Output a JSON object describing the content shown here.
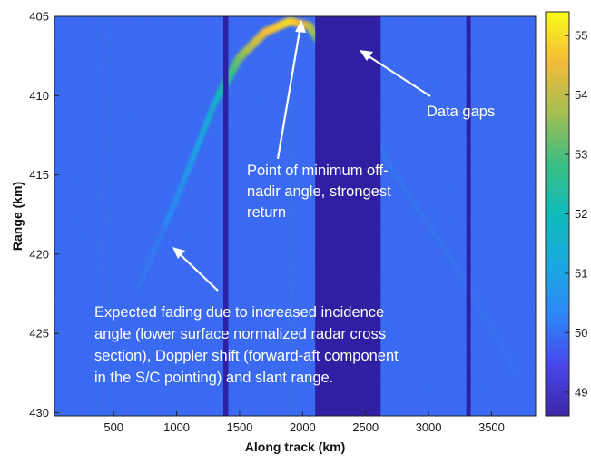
{
  "chart_data": {
    "type": "heatmap",
    "title": "",
    "xlabel": "Along track (km)",
    "ylabel": "Range (km)",
    "xlim": [
      30,
      3850
    ],
    "ylim": [
      405,
      430.2
    ],
    "y_reversed": true,
    "x_ticks": [
      "500",
      "1000",
      "1500",
      "2000",
      "2500",
      "3000",
      "3500"
    ],
    "y_ticks": [
      "405",
      "410",
      "415",
      "420",
      "425",
      "430"
    ],
    "colorbar": {
      "range": [
        48.6,
        55.4
      ],
      "ticks": [
        "49",
        "50",
        "51",
        "52",
        "53",
        "54",
        "55"
      ],
      "colormap": "parula"
    },
    "background_level": 49.9,
    "echo_arc": [
      {
        "x": 700,
        "y": 422,
        "level": 50.2
      },
      {
        "x": 1000,
        "y": 416.5,
        "level": 50.5
      },
      {
        "x": 1300,
        "y": 410.5,
        "level": 51.6
      },
      {
        "x": 1500,
        "y": 407.6,
        "level": 53.3
      },
      {
        "x": 1700,
        "y": 406.0,
        "level": 54.4
      },
      {
        "x": 1900,
        "y": 405.3,
        "level": 55.0
      },
      {
        "x": 2050,
        "y": 405.6,
        "level": 54.2
      },
      {
        "x": 2350,
        "y": 409.0,
        "level": 50.6
      },
      {
        "x": 2700,
        "y": 414.5,
        "level": 50.2
      },
      {
        "x": 3200,
        "y": 420.5,
        "level": 50.1
      },
      {
        "x": 3700,
        "y": 427.5,
        "level": 50.05
      }
    ],
    "data_gaps_km": [
      [
        1370,
        1410
      ],
      [
        2100,
        2620
      ],
      [
        3300,
        3335
      ]
    ],
    "faint_vertical_lines_km": [
      380,
      470,
      1905,
      1925
    ],
    "annotations": [
      {
        "id": "data_gaps",
        "lines": [
          "Data gaps"
        ]
      },
      {
        "id": "min_off_nadir",
        "lines": [
          "Point of minimum off-",
          "nadir angle, strongest",
          "return"
        ]
      },
      {
        "id": "fading",
        "lines": [
          "Expected fading due to increased incidence",
          "angle (lower surface normalized radar cross",
          "section), Doppler shift (forward-aft component",
          "in the S/C pointing) and slant range."
        ]
      }
    ]
  }
}
